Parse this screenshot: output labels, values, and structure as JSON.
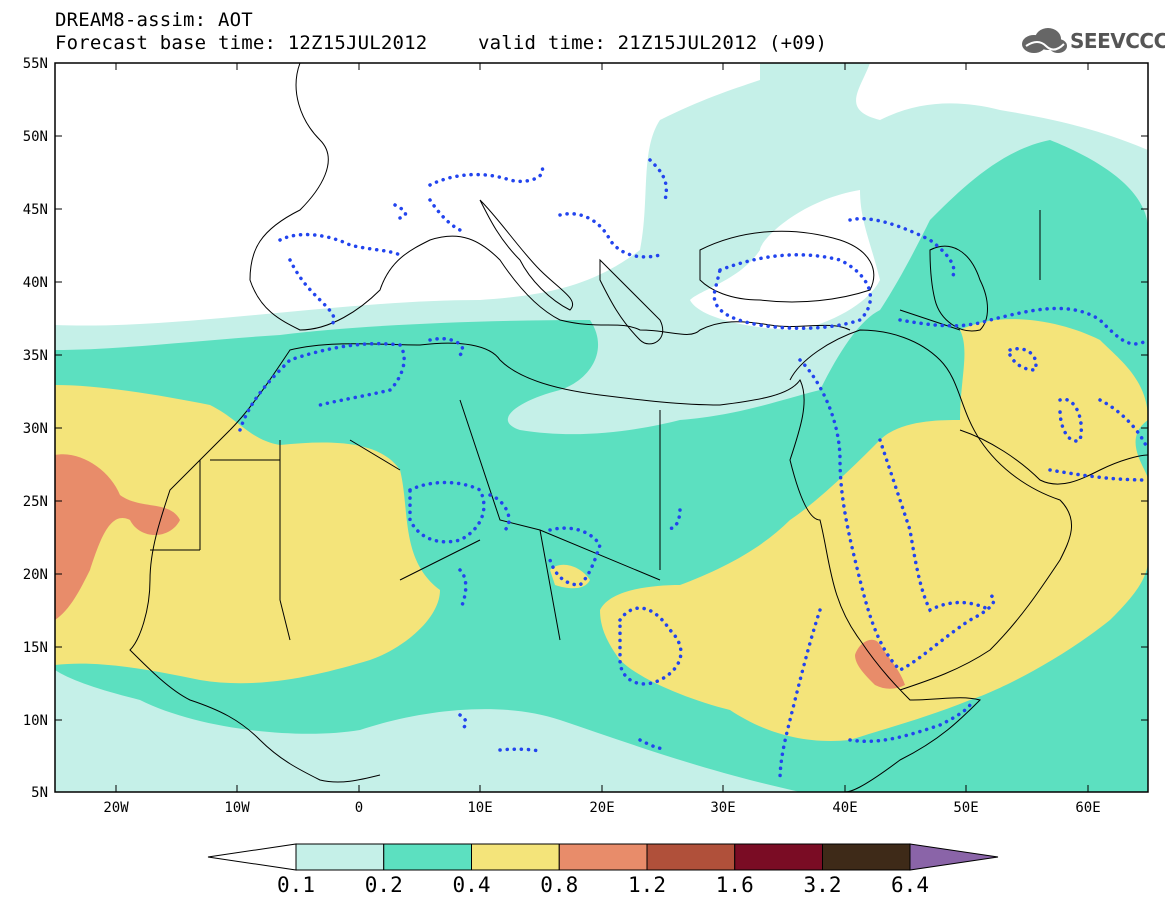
{
  "header": {
    "line1": "DREAM8-assim: AOT",
    "line2_left": "Forecast base time: 12Z15JUL2012",
    "line2_right": "valid time: 21Z15JUL2012 (+09)",
    "logo_text": "SEEVCCC"
  },
  "map": {
    "lat_labels": [
      "55N",
      "50N",
      "45N",
      "40N",
      "35N",
      "30N",
      "25N",
      "20N",
      "15N",
      "10N",
      "5N"
    ],
    "lon_labels": [
      "20W",
      "10W",
      "0",
      "10E",
      "20E",
      "30E",
      "40E",
      "50E",
      "60E"
    ]
  },
  "colorbar": {
    "levels": [
      "0.1",
      "0.2",
      "0.4",
      "0.8",
      "1.2",
      "1.6",
      "3.2",
      "6.4"
    ],
    "colors": [
      "#ffffff",
      "#c5f0e8",
      "#5ce0c0",
      "#f4e47a",
      "#e88c6a",
      "#b0503a",
      "#7a0c24",
      "#3e2a18",
      "#8a64a8"
    ]
  },
  "colors": {
    "c1": "#c5f0e8",
    "c2": "#5ce0c0",
    "c3": "#f4e47a",
    "c4": "#e88c6a",
    "contour": "#2244ee"
  }
}
